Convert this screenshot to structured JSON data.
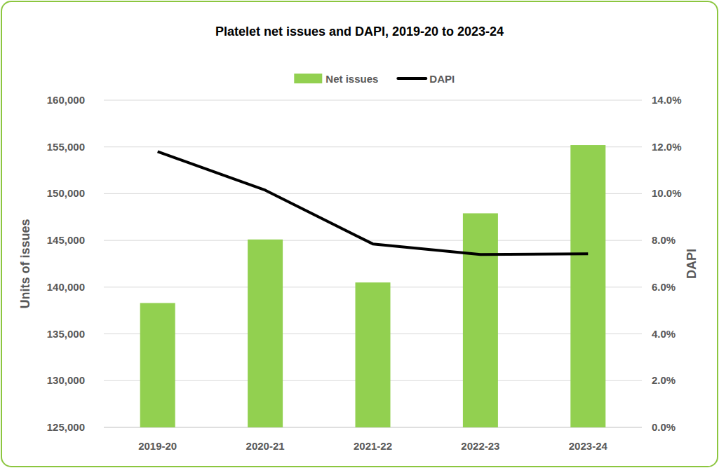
{
  "chart_data": {
    "type": "bar",
    "title": "Platelet net issues and DAPI, 2019-20 to 2023-24",
    "categories": [
      "2019-20",
      "2020-21",
      "2021-22",
      "2022-23",
      "2023-24"
    ],
    "series": [
      {
        "name": "Net issues",
        "type": "bar",
        "color": "#92d050",
        "values": [
          138300,
          145100,
          140500,
          147900,
          155200
        ]
      },
      {
        "name": "DAPI",
        "type": "line",
        "color": "#000000",
        "axis": "y2",
        "values": [
          11.8,
          10.15,
          7.85,
          7.4,
          7.43
        ]
      }
    ],
    "y_label": "Units of issues",
    "y2_label": "DAPI",
    "ylim": [
      125000,
      160000
    ],
    "yticks": [
      {
        "value": 125000,
        "label": "125,000"
      },
      {
        "value": 130000,
        "label": "130,000"
      },
      {
        "value": 135000,
        "label": "135,000"
      },
      {
        "value": 140000,
        "label": "140,000"
      },
      {
        "value": 145000,
        "label": "145,000"
      },
      {
        "value": 150000,
        "label": "150,000"
      },
      {
        "value": 155000,
        "label": "155,000"
      },
      {
        "value": 160000,
        "label": "160,000"
      }
    ],
    "y2lim": [
      0,
      14
    ],
    "y2ticks": [
      {
        "value": 0,
        "label": "0.0%"
      },
      {
        "value": 2,
        "label": "2.0%"
      },
      {
        "value": 4,
        "label": "4.0%"
      },
      {
        "value": 6,
        "label": "6.0%"
      },
      {
        "value": 8,
        "label": "8.0%"
      },
      {
        "value": 10,
        "label": "10.0%"
      },
      {
        "value": 12,
        "label": "12.0%"
      },
      {
        "value": 14,
        "label": "14.0%"
      }
    ],
    "grid": true,
    "legend": "top"
  }
}
